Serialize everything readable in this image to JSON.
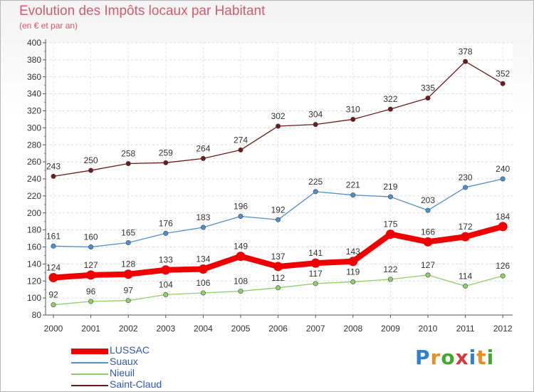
{
  "header": {
    "title": "Evolution des Impôts locaux par Habitant",
    "subtitle": "(en € et par an)"
  },
  "logo": {
    "text": "Proxiti",
    "colors": [
      "#2f7fd3",
      "#e98e22",
      "#42a832",
      "#d63b3b"
    ]
  },
  "chart_data": {
    "type": "line",
    "x": [
      "2000",
      "2001",
      "2002",
      "2003",
      "2004",
      "2005",
      "2006",
      "2007",
      "2008",
      "2009",
      "2010",
      "2011",
      "2012"
    ],
    "ylim": [
      80,
      400
    ],
    "yticks": [
      80,
      100,
      120,
      140,
      160,
      180,
      200,
      220,
      240,
      260,
      280,
      300,
      320,
      340,
      360,
      380,
      400
    ],
    "grid": true,
    "legend_position": "bottom-left",
    "series": [
      {
        "name": "LUSSAC",
        "color": "#ee0000",
        "emphasis": true,
        "values": [
          124,
          127,
          128,
          133,
          134,
          149,
          137,
          141,
          143,
          175,
          166,
          172,
          184
        ]
      },
      {
        "name": "Suaux",
        "color": "#4f8fcc",
        "values": [
          161,
          160,
          165,
          176,
          183,
          196,
          192,
          225,
          221,
          219,
          203,
          230,
          240
        ]
      },
      {
        "name": "Nieuil",
        "color": "#8fd06a",
        "values": [
          92,
          96,
          97,
          104,
          106,
          108,
          112,
          117,
          119,
          122,
          127,
          114,
          126
        ]
      },
      {
        "name": "Saint-Claud",
        "color": "#6e1a1a",
        "values": [
          243,
          250,
          258,
          259,
          264,
          274,
          302,
          304,
          310,
          322,
          335,
          378,
          352
        ]
      }
    ]
  }
}
